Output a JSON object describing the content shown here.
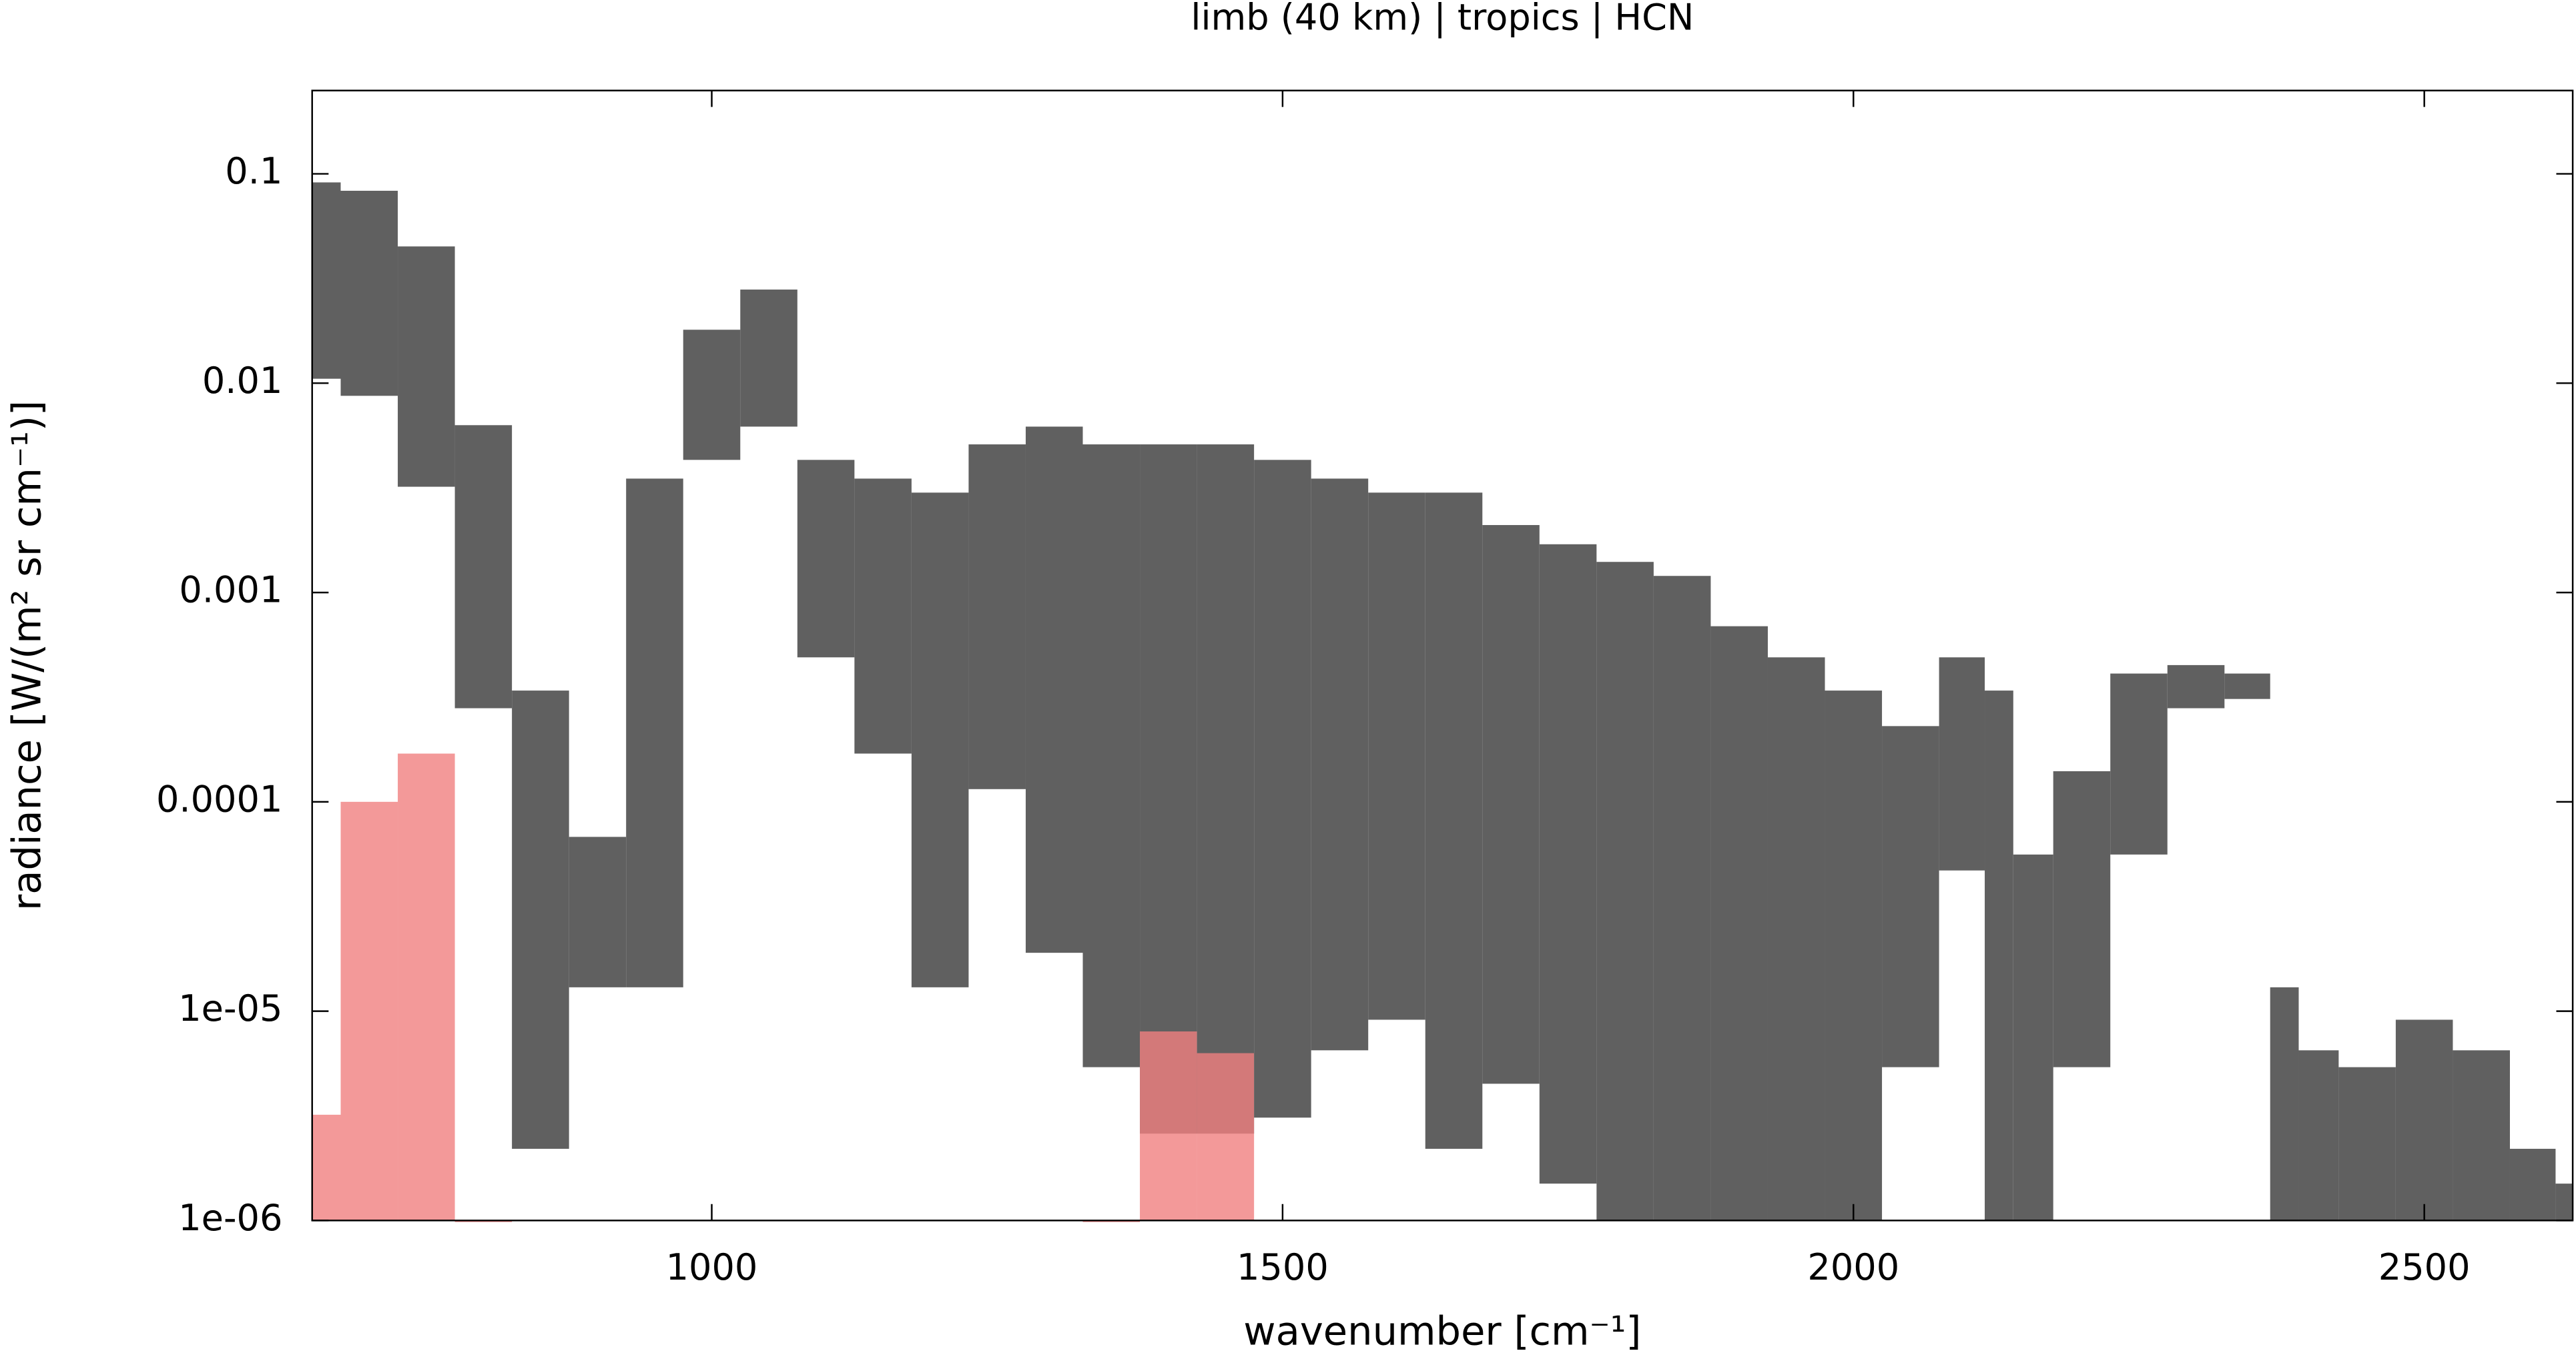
{
  "chart_data": {
    "type": "range",
    "title": "limb (40 km) | tropics | HCN",
    "x_label": "wavenumber [cm⁻¹]",
    "y_label": "radiance [W/(m² sr cm⁻¹)]",
    "x": [
      650,
      700,
      750,
      800,
      850,
      900,
      950,
      1000,
      1050,
      1100,
      1150,
      1200,
      1250,
      1300,
      1350,
      1400,
      1450,
      1500,
      1550,
      1600,
      1650,
      1700,
      1750,
      1800,
      1850,
      1900,
      1950,
      2000,
      2050,
      2100,
      2130,
      2150,
      2200,
      2250,
      2300,
      2350,
      2380,
      2400,
      2450,
      2500,
      2550,
      2600,
      2630
    ],
    "series": [
      {
        "color": "#606060",
        "values": [
          0.091,
          0.083,
          0.045,
          0.0063,
          0.00034,
          6.8e-05,
          0.0035,
          0.018,
          0.028,
          0.0043,
          0.0035,
          0.003,
          0.0051,
          0.0062,
          0.0051,
          0.0051,
          0.0051,
          0.0043,
          0.0035,
          0.003,
          0.003,
          0.0021,
          0.0017,
          0.0014,
          0.0012,
          0.00069,
          0.00049,
          0.00034,
          0.00023,
          0.00049,
          0.00034,
          5.6e-05,
          0.00014,
          0.00041,
          0.00045,
          0.00041,
          1.3e-05,
          6.5e-06,
          5.4e-06,
          9.1e-06,
          6.5e-06,
          2.2e-06,
          1.5e-06
        ]
      },
      {
        "color": "#606060",
        "values": [
          0.0105,
          0.0087,
          0.0032,
          0.00028,
          2.2e-06,
          1.3e-05,
          1.3e-05,
          0.0043,
          0.0062,
          0.00049,
          0.00017,
          1.3e-05,
          0.000115,
          1.9e-05,
          5.4e-06,
          2.6e-06,
          2.6e-06,
          3.1e-06,
          6.5e-06,
          9.1e-06,
          2.2e-06,
          4.5e-06,
          1.5e-06,
          1e-06,
          1e-06,
          1e-06,
          1e-06,
          1e-06,
          5.4e-06,
          4.7e-05,
          1e-06,
          1e-06,
          5.4e-06,
          5.6e-05,
          0.00028,
          0.00031,
          1e-06,
          1e-06,
          1e-06,
          1e-06,
          1e-06,
          1e-06,
          1e-06
        ]
      },
      {
        "color": "#f08080",
        "values": [
          3.2e-06,
          0.0001,
          0.00017,
          1e-06,
          null,
          null,
          null,
          null,
          null,
          null,
          null,
          null,
          null,
          null,
          1e-06,
          8e-06,
          6.3e-06,
          null,
          null,
          null,
          null,
          null,
          null,
          null,
          null,
          null,
          null,
          null,
          null,
          null,
          null,
          null,
          null,
          null,
          null,
          null,
          null,
          null,
          null,
          null,
          null,
          null,
          null
        ]
      }
    ],
    "xlim": [
      650,
      2630
    ],
    "ylim": [
      1e-06,
      0.25
    ],
    "log_y": true,
    "xticks": [
      1000,
      1500,
      2000,
      2500
    ],
    "yticks": [
      0.1,
      0.01,
      0.001,
      0.0001,
      {
        "value": 1e-05,
        "label": "1e-05"
      },
      {
        "value": 1e-06,
        "label": "1e-06"
      }
    ]
  }
}
